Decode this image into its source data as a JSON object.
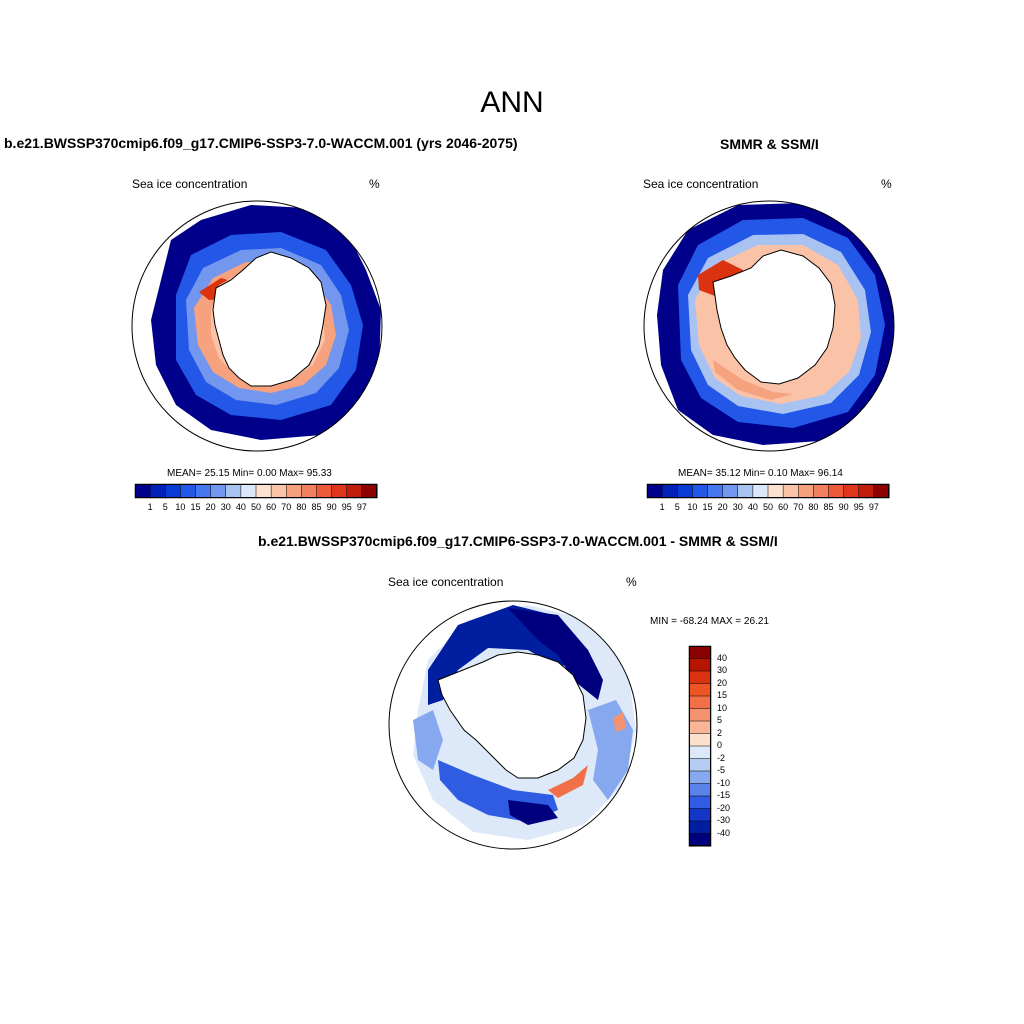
{
  "title": "ANN",
  "units": "%",
  "panels": [
    {
      "id": "model",
      "title": "b.e21.BWSSP370cmip6.f09_g17.CMIP6-SSP3-7.0-WACCM.001 (yrs 2046-2075)",
      "label_left": "Sea ice concentration",
      "label_right": "%",
      "stats": {
        "mean": "25.15",
        "min": "0.00",
        "max": "95.33"
      },
      "stats_text": "MEAN=  25.15  Min=   0.00  Max=  95.33"
    },
    {
      "id": "obs",
      "title": "SMMR & SSM/I",
      "label_left": "Sea ice concentration",
      "label_right": "%",
      "stats": {
        "mean": "35.12",
        "min": "0.10",
        "max": "96.14"
      },
      "stats_text": "MEAN=  35.12  Min=   0.10  Max=  96.14"
    },
    {
      "id": "diff",
      "title": "b.e21.BWSSP370cmip6.f09_g17.CMIP6-SSP3-7.0-WACCM.001 - SMMR & SSM/I",
      "label_left": "Sea ice concentration",
      "label_right": "%",
      "stats": {
        "min": "-68.24",
        "max": "26.21"
      },
      "stats_text": "MIN = -68.24 MAX =  26.21"
    }
  ],
  "colorbar_abs": {
    "ticks": [
      "1",
      "5",
      "10",
      "15",
      "20",
      "30",
      "40",
      "50",
      "60",
      "70",
      "80",
      "85",
      "90",
      "95",
      "97"
    ],
    "colors": [
      "#00008b",
      "#0022b8",
      "#0a3ad4",
      "#2357e8",
      "#4777ee",
      "#7397ef",
      "#a8c2f2",
      "#dbe8f9",
      "#fde2d2",
      "#fac3a8",
      "#f6a27f",
      "#f1805e",
      "#ec5a3a",
      "#e0351c",
      "#c21c0b",
      "#8f0000"
    ]
  },
  "colorbar_diff": {
    "ticks": [
      "40",
      "30",
      "20",
      "15",
      "10",
      "5",
      "2",
      "0",
      "-2",
      "-5",
      "-10",
      "-15",
      "-20",
      "-30",
      "-40"
    ],
    "colors": [
      "#8b0000",
      "#b81500",
      "#db3210",
      "#ee5525",
      "#f27048",
      "#f59270",
      "#f9b596",
      "#fde0cc",
      "#dde9f8",
      "#b4cbf2",
      "#86a8ee",
      "#5a82e8",
      "#2f5ce2",
      "#1436c8",
      "#001ea0",
      "#00007e"
    ]
  }
}
